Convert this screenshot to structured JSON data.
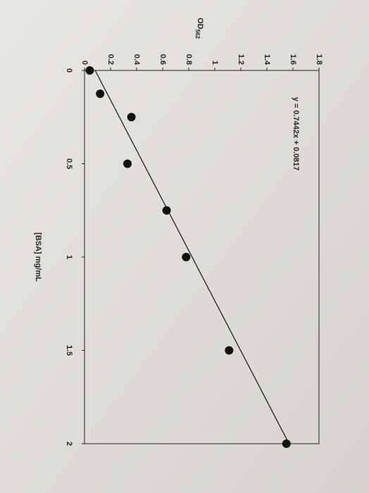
{
  "chart_data": {
    "type": "scatter",
    "x_label": "[BSA] mg/mL",
    "y_label": {
      "text": "OD",
      "subscript": "562"
    },
    "x": [
      0,
      0.125,
      0.25,
      0.5,
      0.75,
      1,
      1.5,
      2
    ],
    "values": [
      0.04,
      0.12,
      0.36,
      0.33,
      0.63,
      0.78,
      1.11,
      1.55
    ],
    "color": "#111111",
    "trendline": {
      "label": "y = 0.7442x + 0.0817",
      "slope": 0.7442,
      "intercept": 0.0817
    },
    "xlim": [
      0,
      2
    ],
    "xticks": [
      0,
      0.5,
      1,
      1.5,
      2
    ],
    "ylim": [
      0,
      1.8
    ],
    "yticks": [
      0,
      0.2,
      0.4,
      0.6,
      0.8,
      1,
      1.2,
      1.4,
      1.6,
      1.8
    ]
  }
}
